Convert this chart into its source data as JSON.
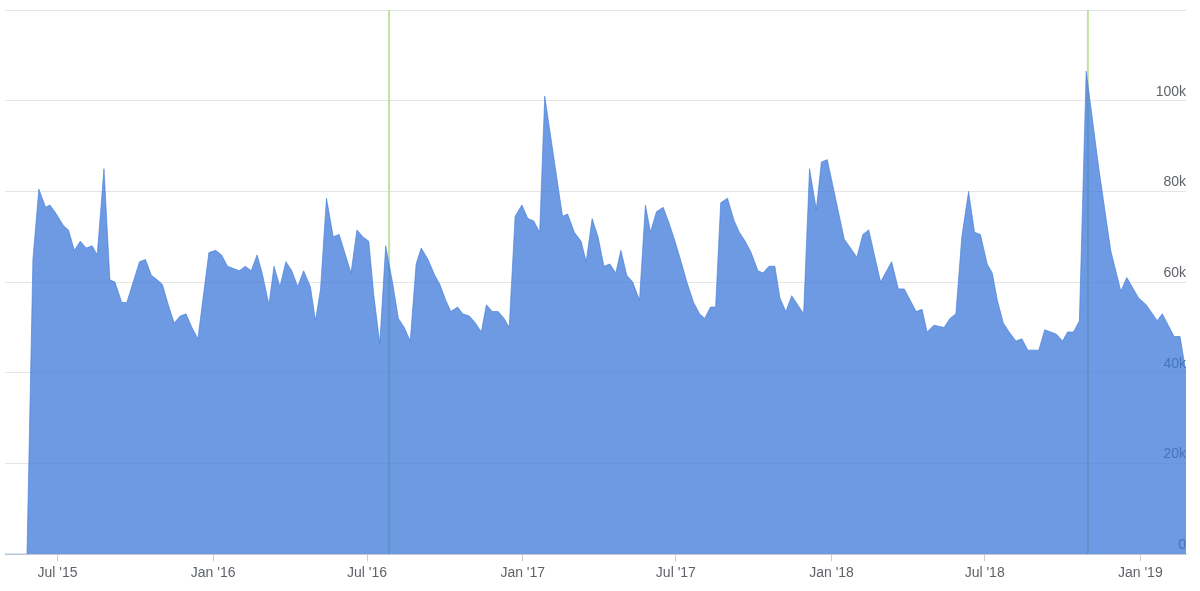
{
  "chart_data": {
    "type": "area",
    "color": "#3c78d8",
    "x": [
      "2015-04-30",
      "2015-05-26",
      "2015-06-02",
      "2015-06-09",
      "2015-06-17",
      "2015-06-22",
      "2015-06-28",
      "2015-07-08",
      "2015-07-14",
      "2015-07-21",
      "2015-07-28",
      "2015-08-04",
      "2015-08-11",
      "2015-08-17",
      "2015-08-25",
      "2015-09-01",
      "2015-09-07",
      "2015-09-15",
      "2015-09-21",
      "2015-10-06",
      "2015-10-13",
      "2015-10-20",
      "2015-10-27",
      "2015-11-02",
      "2015-11-09",
      "2015-11-16",
      "2015-11-23",
      "2015-11-30",
      "2015-12-07",
      "2015-12-14",
      "2015-12-27",
      "2016-01-04",
      "2016-01-11",
      "2016-01-18",
      "2016-01-25",
      "2016-02-01",
      "2016-02-08",
      "2016-02-15",
      "2016-02-22",
      "2016-02-28",
      "2016-03-07",
      "2016-03-13",
      "2016-03-20",
      "2016-03-27",
      "2016-04-03",
      "2016-04-10",
      "2016-04-17",
      "2016-04-25",
      "2016-05-01",
      "2016-05-07",
      "2016-05-14",
      "2016-05-22",
      "2016-05-29",
      "2016-06-12",
      "2016-06-19",
      "2016-06-26",
      "2016-07-03",
      "2016-07-09",
      "2016-07-16",
      "2016-07-23",
      "2016-07-31",
      "2016-08-07",
      "2016-08-14",
      "2016-08-21",
      "2016-08-28",
      "2016-09-03",
      "2016-09-11",
      "2016-09-19",
      "2016-09-25",
      "2016-10-02",
      "2016-10-08",
      "2016-10-16",
      "2016-10-22",
      "2016-10-30",
      "2016-11-06",
      "2016-11-13",
      "2016-11-19",
      "2016-11-26",
      "2016-12-03",
      "2016-12-10",
      "2016-12-16",
      "2016-12-23",
      "2016-12-31",
      "2017-01-07",
      "2017-01-14",
      "2017-01-21",
      "2017-01-27",
      "2017-02-17",
      "2017-02-23",
      "2017-03-03",
      "2017-03-11",
      "2017-03-17",
      "2017-03-24",
      "2017-03-31",
      "2017-04-07",
      "2017-04-14",
      "2017-04-21",
      "2017-04-27",
      "2017-05-04",
      "2017-05-11",
      "2017-05-19",
      "2017-05-26",
      "2017-06-01",
      "2017-06-08",
      "2017-06-16",
      "2017-06-23",
      "2017-06-30",
      "2017-07-08",
      "2017-07-14",
      "2017-07-22",
      "2017-07-29",
      "2017-08-04",
      "2017-08-11",
      "2017-08-17",
      "2017-08-23",
      "2017-08-31",
      "2017-09-08",
      "2017-09-14",
      "2017-09-21",
      "2017-09-28",
      "2017-10-06",
      "2017-10-12",
      "2017-10-19",
      "2017-10-26",
      "2017-11-01",
      "2017-11-08",
      "2017-11-15",
      "2017-11-22",
      "2017-11-29",
      "2017-12-06",
      "2017-12-14",
      "2017-12-20",
      "2017-12-27",
      "2018-01-16",
      "2018-01-31",
      "2018-02-07",
      "2018-02-14",
      "2018-02-28",
      "2018-03-13",
      "2018-03-21",
      "2018-03-28",
      "2018-04-04",
      "2018-04-11",
      "2018-04-18",
      "2018-04-24",
      "2018-05-02",
      "2018-05-14",
      "2018-05-21",
      "2018-05-28",
      "2018-06-04",
      "2018-06-12",
      "2018-06-19",
      "2018-06-26",
      "2018-07-04",
      "2018-07-10",
      "2018-07-16",
      "2018-07-23",
      "2018-07-30",
      "2018-08-07",
      "2018-08-14",
      "2018-08-21",
      "2018-09-03",
      "2018-09-10",
      "2018-09-24",
      "2018-10-01",
      "2018-10-07",
      "2018-10-14",
      "2018-10-21",
      "2018-10-29",
      "2018-11-13",
      "2018-11-27",
      "2018-12-09",
      "2018-12-16",
      "2018-12-30",
      "2019-01-08",
      "2019-01-21",
      "2019-01-27",
      "2019-02-03",
      "2019-02-10",
      "2019-02-17",
      "2019-02-24"
    ],
    "values": [
      0,
      0,
      65000,
      80500,
      76500,
      77000,
      75500,
      72500,
      71500,
      67000,
      69000,
      67500,
      68000,
      66000,
      85000,
      60500,
      60000,
      55500,
      55500,
      64500,
      65000,
      61500,
      60500,
      59500,
      55000,
      51000,
      52500,
      53000,
      50000,
      47500,
      66500,
      67000,
      66000,
      63500,
      63000,
      62500,
      63500,
      62500,
      66000,
      62000,
      55000,
      63500,
      59000,
      64500,
      62500,
      59000,
      62500,
      59000,
      51500,
      58500,
      78500,
      70000,
      70500,
      62000,
      71500,
      70000,
      69000,
      57000,
      46500,
      68000,
      60000,
      52000,
      50000,
      47000,
      64000,
      67500,
      65000,
      61500,
      59500,
      56000,
      53500,
      54500,
      53000,
      52500,
      51000,
      49000,
      55000,
      53500,
      53500,
      52000,
      50000,
      74500,
      77000,
      74000,
      73500,
      71000,
      101000,
      74500,
      75000,
      71000,
      69000,
      64500,
      74000,
      70000,
      63500,
      64000,
      62000,
      67000,
      61500,
      60000,
      56000,
      77000,
      71000,
      75500,
      76500,
      73000,
      69000,
      64000,
      60000,
      55500,
      53000,
      52000,
      54500,
      54500,
      77500,
      78500,
      73500,
      71000,
      69000,
      66500,
      62500,
      62000,
      63500,
      63500,
      56500,
      53500,
      57000,
      55000,
      53000,
      85000,
      76000,
      86500,
      87000,
      69500,
      65500,
      70500,
      71500,
      60000,
      64500,
      58500,
      58500,
      56000,
      53500,
      54000,
      49000,
      50500,
      50000,
      52000,
      53000,
      70000,
      80000,
      71000,
      70500,
      64000,
      62000,
      56000,
      51000,
      49000,
      47000,
      47500,
      45000,
      45000,
      49500,
      48500,
      47000,
      49000,
      49000,
      51500,
      106500,
      85000,
      67000,
      58000,
      61000,
      56500,
      55000,
      51500,
      53000,
      50500,
      48000,
      48000,
      40000
    ],
    "xlim": [
      "2015-04-30",
      "2019-02-24"
    ],
    "xticks": [
      {
        "value": "2015-07",
        "label": "Jul '15"
      },
      {
        "value": "2016-01",
        "label": "Jan '16"
      },
      {
        "value": "2016-07",
        "label": "Jul '16"
      },
      {
        "value": "2017-01",
        "label": "Jan '17"
      },
      {
        "value": "2017-07",
        "label": "Jul '17"
      },
      {
        "value": "2018-01",
        "label": "Jan '18"
      },
      {
        "value": "2018-07",
        "label": "Jul '18"
      },
      {
        "value": "2019-01",
        "label": "Jan '19"
      }
    ],
    "ylim": [
      0,
      120000
    ],
    "yticks": [
      0,
      {
        "value": 20000,
        "label": "20k"
      },
      {
        "value": 40000,
        "label": "40k"
      },
      {
        "value": 60000,
        "label": "60k"
      },
      {
        "value": 80000,
        "label": "80k"
      },
      {
        "value": 100000,
        "label": "100k"
      },
      {
        "value": 120000,
        "label": null
      }
    ],
    "grid": "y",
    "ref_lines": [
      {
        "axis": "x",
        "value": "2016-07-27",
        "color": "#c2e29f"
      },
      {
        "axis": "x",
        "value": "2018-10-31",
        "color": "#c2e29f"
      }
    ]
  }
}
